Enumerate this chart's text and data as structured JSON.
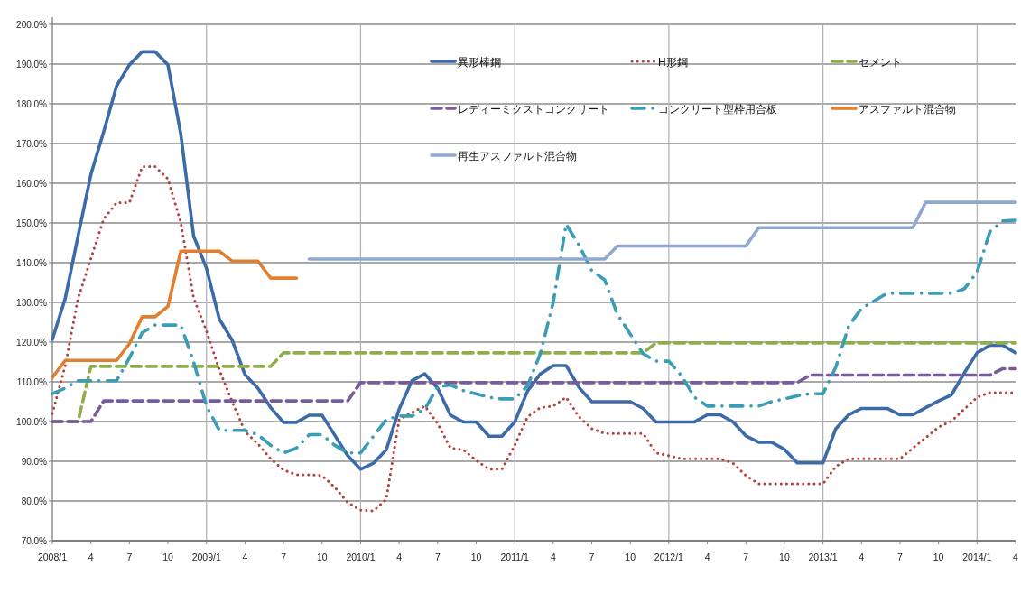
{
  "chart_data": {
    "type": "line",
    "x": [
      "2008-01",
      "2008-02",
      "2008-03",
      "2008-04",
      "2008-05",
      "2008-06",
      "2008-07",
      "2008-08",
      "2008-09",
      "2008-10",
      "2008-11",
      "2008-12",
      "2009-01",
      "2009-02",
      "2009-03",
      "2009-04",
      "2009-05",
      "2009-06",
      "2009-07",
      "2009-08",
      "2009-09",
      "2009-10",
      "2009-11",
      "2009-12",
      "2010-01",
      "2010-02",
      "2010-03",
      "2010-04",
      "2010-05",
      "2010-06",
      "2010-07",
      "2010-08",
      "2010-09",
      "2010-10",
      "2010-11",
      "2010-12",
      "2011-01",
      "2011-02",
      "2011-03",
      "2011-04",
      "2011-05",
      "2011-06",
      "2011-07",
      "2011-08",
      "2011-09",
      "2011-10",
      "2011-11",
      "2011-12",
      "2012-01",
      "2012-02",
      "2012-03",
      "2012-04",
      "2012-05",
      "2012-06",
      "2012-07",
      "2012-08",
      "2012-09",
      "2012-10",
      "2012-11",
      "2012-12",
      "2013-01",
      "2013-02",
      "2013-03",
      "2013-04",
      "2013-05",
      "2013-06",
      "2013-07",
      "2013-08",
      "2013-09",
      "2013-10",
      "2013-11",
      "2013-12",
      "2014-01",
      "2014-02",
      "2014-03",
      "2014-04"
    ],
    "xlim": [
      "2008-01",
      "2014-04"
    ],
    "xticks": [
      {
        "value": "2008-01",
        "label": "2008/1"
      },
      {
        "value": "2008-04",
        "label": "4"
      },
      {
        "value": "2008-07",
        "label": "7"
      },
      {
        "value": "2008-10",
        "label": "10"
      },
      {
        "value": "2009-01",
        "label": "2009/1"
      },
      {
        "value": "2009-04",
        "label": "4"
      },
      {
        "value": "2009-07",
        "label": "7"
      },
      {
        "value": "2009-10",
        "label": "10"
      },
      {
        "value": "2010-01",
        "label": "2010/1"
      },
      {
        "value": "2010-04",
        "label": "4"
      },
      {
        "value": "2010-07",
        "label": "7"
      },
      {
        "value": "2010-10",
        "label": "10"
      },
      {
        "value": "2011-01",
        "label": "2011/1"
      },
      {
        "value": "2011-04",
        "label": "4"
      },
      {
        "value": "2011-07",
        "label": "7"
      },
      {
        "value": "2011-10",
        "label": "10"
      },
      {
        "value": "2012-01",
        "label": "2012/1"
      },
      {
        "value": "2012-04",
        "label": "4"
      },
      {
        "value": "2012-07",
        "label": "7"
      },
      {
        "value": "2012-10",
        "label": "10"
      },
      {
        "value": "2013-01",
        "label": "2013/1"
      },
      {
        "value": "2013-04",
        "label": "4"
      },
      {
        "value": "2013-07",
        "label": "7"
      },
      {
        "value": "2013-10",
        "label": "10"
      },
      {
        "value": "2014-01",
        "label": "2014/1"
      },
      {
        "value": "2014-04",
        "label": "4"
      }
    ],
    "ylim": [
      70,
      200
    ],
    "yticks": [
      {
        "value": 70,
        "label": "70.0%"
      },
      {
        "value": 80,
        "label": "80.0%"
      },
      {
        "value": 90,
        "label": "90.0%"
      },
      {
        "value": 100,
        "label": "100.0%"
      },
      {
        "value": 110,
        "label": "110.0%"
      },
      {
        "value": 120,
        "label": "120.0%"
      },
      {
        "value": 130,
        "label": "130.0%"
      },
      {
        "value": 140,
        "label": "140.0%"
      },
      {
        "value": 150,
        "label": "150.0%"
      },
      {
        "value": 160,
        "label": "160.0%"
      },
      {
        "value": 170,
        "label": "170.0%"
      },
      {
        "value": 180,
        "label": "180.0%"
      },
      {
        "value": 190,
        "label": "190.0%"
      },
      {
        "value": 200,
        "label": "200.0%"
      }
    ],
    "grid": true,
    "legend": "top",
    "series": [
      {
        "name": "異形棒鋼",
        "color": "#3d6aa8",
        "line_style": "solid",
        "values": [
          120.7,
          131,
          146.7,
          162.2,
          173,
          184.5,
          189.8,
          193.1,
          193.1,
          189.8,
          172.4,
          146.7,
          138.6,
          125.8,
          120.5,
          111.8,
          108.4,
          103.5,
          99.8,
          99.8,
          101.6,
          101.6,
          96.5,
          91.4,
          88.0,
          89.5,
          92.9,
          103.1,
          110.3,
          112.0,
          108.4,
          101.6,
          99.9,
          99.9,
          96.3,
          96.3,
          99.9,
          107.7,
          112.0,
          114.1,
          114.1,
          108.6,
          105.0,
          105.0,
          105.0,
          105.0,
          103.3,
          99.9,
          99.9,
          99.9,
          99.9,
          101.7,
          101.7,
          99.9,
          96.4,
          94.8,
          94.8,
          93.0,
          89.6,
          89.6,
          89.6,
          98.2,
          101.7,
          103.3,
          103.3,
          103.3,
          101.7,
          101.7,
          103.5,
          105.2,
          106.7,
          112.2,
          117.3,
          119.2,
          119.2,
          117.3
        ]
      },
      {
        "name": "H形鋼",
        "color": "#b3403a",
        "line_style": "dotted",
        "values": [
          102,
          114,
          131,
          141,
          151,
          155.1,
          155.1,
          164.2,
          164.2,
          161.1,
          150.1,
          131.1,
          122.8,
          113,
          105,
          97.5,
          94.4,
          90.6,
          87.8,
          86.6,
          86.6,
          86.4,
          83.4,
          79.6,
          77.7,
          77.5,
          80.4,
          100.5,
          102.3,
          103.9,
          99.5,
          93.3,
          92.9,
          90.2,
          88.0,
          88.0,
          94,
          101.2,
          103.5,
          103.9,
          106.1,
          101.2,
          98.2,
          97.0,
          97.0,
          97.0,
          97.0,
          92.1,
          91.4,
          90.6,
          90.6,
          90.6,
          90.6,
          89.5,
          86.4,
          84.3,
          84.3,
          84.3,
          84.3,
          84.3,
          84.3,
          88.7,
          90.6,
          90.6,
          90.6,
          90.6,
          90.6,
          93.3,
          95.9,
          98.6,
          100.1,
          103.1,
          106.1,
          107.3,
          107.3,
          107.3
        ]
      },
      {
        "name": "セメント",
        "color": "#8fae4a",
        "line_style": "dashed",
        "values": [
          100,
          100,
          100,
          113.9,
          113.9,
          113.9,
          113.9,
          113.9,
          113.9,
          113.9,
          113.9,
          113.9,
          113.9,
          113.9,
          113.9,
          113.9,
          113.9,
          113.9,
          117.3,
          117.3,
          117.3,
          117.3,
          117.3,
          117.3,
          117.3,
          117.3,
          117.3,
          117.3,
          117.3,
          117.3,
          117.3,
          117.3,
          117.3,
          117.3,
          117.3,
          117.3,
          117.3,
          117.3,
          117.3,
          117.3,
          117.3,
          117.3,
          117.3,
          117.3,
          117.3,
          117.3,
          117.3,
          119.8,
          119.8,
          119.8,
          119.8,
          119.8,
          119.8,
          119.8,
          119.8,
          119.8,
          119.8,
          119.8,
          119.8,
          119.8,
          119.8,
          119.8,
          119.8,
          119.8,
          119.8,
          119.8,
          119.8,
          119.8,
          119.8,
          119.8,
          119.8,
          119.8,
          119.8,
          119.8,
          119.8,
          119.8
        ]
      },
      {
        "name": "レディーミクストコンクリート",
        "color": "#7a5b99",
        "line_style": "dashed",
        "values": [
          100,
          100,
          100,
          100,
          105.2,
          105.2,
          105.2,
          105.2,
          105.2,
          105.2,
          105.2,
          105.2,
          105.2,
          105.2,
          105.2,
          105.2,
          105.2,
          105.2,
          105.2,
          105.2,
          105.2,
          105.2,
          105.2,
          105.2,
          109.8,
          109.8,
          109.8,
          109.8,
          109.8,
          109.8,
          109.8,
          109.8,
          109.8,
          109.8,
          109.8,
          109.8,
          109.8,
          109.8,
          109.8,
          109.8,
          109.8,
          109.8,
          109.8,
          109.8,
          109.8,
          109.8,
          109.8,
          109.8,
          109.8,
          109.8,
          109.8,
          109.8,
          109.8,
          109.8,
          109.8,
          109.8,
          109.8,
          109.8,
          109.8,
          111.7,
          111.7,
          111.7,
          111.7,
          111.7,
          111.7,
          111.7,
          111.7,
          111.7,
          111.7,
          111.7,
          111.7,
          111.7,
          111.7,
          111.7,
          113.3,
          113.3
        ]
      },
      {
        "name": "コンクリート型枠用合板",
        "color": "#3b9cb5",
        "line_style": "dashdot",
        "values": [
          107.0,
          108.4,
          110.3,
          110.3,
          110.3,
          110.3,
          116.0,
          122.4,
          124.3,
          124.3,
          124.3,
          115,
          103.9,
          97.8,
          97.8,
          97.8,
          96.7,
          94.0,
          92.1,
          93.3,
          96.7,
          96.7,
          94.0,
          92.1,
          92.1,
          96.3,
          100.5,
          101.4,
          101.4,
          103.1,
          108.8,
          109.2,
          107.8,
          107.0,
          106.1,
          105.7,
          105.7,
          109,
          117.1,
          130,
          149.7,
          144.5,
          138,
          135.7,
          127,
          122.0,
          117.1,
          115.2,
          115.2,
          111.5,
          106.1,
          103.9,
          103.9,
          103.9,
          103.9,
          103.9,
          105.0,
          105.7,
          106.5,
          107.0,
          107.0,
          113.7,
          124,
          128.5,
          130.4,
          132.3,
          132.3,
          132.3,
          132.3,
          132.3,
          132.3,
          133.4,
          137.6,
          147.8,
          150.5,
          150.7
        ]
      },
      {
        "name": "アスファルト混合物",
        "color": "#e07f30",
        "line_style": "solid",
        "values": [
          111.1,
          115.4,
          115.4,
          115.4,
          115.4,
          115.4,
          119.6,
          126.4,
          126.4,
          129.0,
          142.9,
          142.9,
          142.9,
          142.9,
          140.4,
          140.4,
          140.4,
          136.1,
          136.1,
          136.1,
          null,
          null,
          null,
          null,
          null,
          null,
          null,
          null,
          null,
          null,
          null,
          null,
          null,
          null,
          null,
          null,
          null,
          null,
          null,
          null,
          null,
          null,
          null,
          null,
          null,
          null,
          null,
          null,
          null,
          null,
          null,
          null,
          null,
          null,
          null,
          null,
          null,
          null,
          null,
          null,
          null,
          null,
          null,
          null,
          null,
          null,
          null,
          null,
          null,
          null,
          null,
          null,
          null,
          null,
          null,
          null
        ]
      },
      {
        "name": "再生アスファルト混合物",
        "color": "#8ea8d2",
        "line_style": "solid",
        "values": [
          null,
          null,
          null,
          null,
          null,
          null,
          null,
          null,
          null,
          null,
          null,
          null,
          null,
          null,
          null,
          null,
          null,
          null,
          null,
          null,
          140.9,
          140.9,
          140.9,
          140.9,
          140.9,
          140.9,
          140.9,
          140.9,
          140.9,
          140.9,
          140.9,
          140.9,
          140.9,
          140.9,
          140.9,
          140.9,
          140.9,
          140.9,
          140.9,
          140.9,
          140.9,
          140.9,
          140.9,
          140.9,
          144.2,
          144.2,
          144.2,
          144.2,
          144.2,
          144.2,
          144.2,
          144.2,
          144.2,
          144.2,
          144.2,
          148.8,
          148.8,
          148.8,
          148.8,
          148.8,
          148.8,
          148.8,
          148.8,
          148.8,
          148.8,
          148.8,
          148.8,
          148.8,
          155.2,
          155.2,
          155.2,
          155.2,
          155.2,
          155.2,
          155.2,
          155.2
        ]
      }
    ]
  }
}
